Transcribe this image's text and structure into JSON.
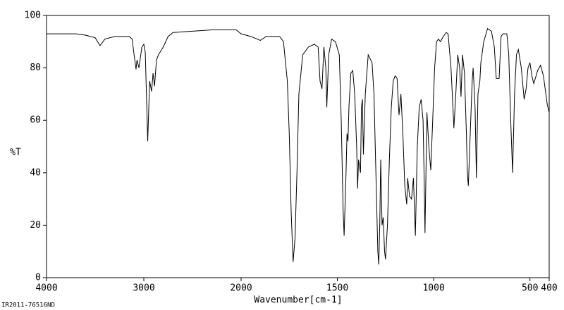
{
  "chart_data": {
    "type": "line",
    "x_label": "Wavenumber[cm-1]",
    "y_label": "%T",
    "footer": "IR2011-76516ND",
    "xlim": [
      4000,
      400
    ],
    "ylim": [
      0,
      100
    ],
    "xticks": [
      4000,
      3000,
      2000,
      1500,
      1000,
      500,
      400
    ],
    "yticks": [
      0,
      20,
      40,
      60,
      80,
      100
    ],
    "x_scale_break": 2000,
    "color": "#000000",
    "x": [
      4000,
      3900,
      3800,
      3700,
      3600,
      3500,
      3450,
      3400,
      3300,
      3150,
      3120,
      3100,
      3080,
      3070,
      3050,
      3020,
      3000,
      2985,
      2960,
      2940,
      2920,
      2905,
      2890,
      2870,
      2850,
      2800,
      2750,
      2700,
      2500,
      2300,
      2100,
      2050,
      2000,
      1950,
      1900,
      1870,
      1800,
      1780,
      1760,
      1750,
      1740,
      1730,
      1720,
      1710,
      1700,
      1680,
      1650,
      1620,
      1600,
      1590,
      1580,
      1570,
      1560,
      1555,
      1545,
      1530,
      1510,
      1490,
      1480,
      1470,
      1465,
      1455,
      1450,
      1445,
      1440,
      1430,
      1420,
      1410,
      1400,
      1395,
      1390,
      1380,
      1375,
      1370,
      1365,
      1355,
      1340,
      1320,
      1310,
      1300,
      1290,
      1285,
      1280,
      1275,
      1268,
      1262,
      1255,
      1250,
      1240,
      1230,
      1220,
      1210,
      1200,
      1190,
      1180,
      1170,
      1160,
      1150,
      1140,
      1135,
      1125,
      1115,
      1105,
      1095,
      1085,
      1075,
      1065,
      1055,
      1050,
      1045,
      1040,
      1035,
      1025,
      1015,
      1005,
      995,
      985,
      975,
      965,
      950,
      935,
      925,
      910,
      900,
      895,
      885,
      875,
      865,
      858,
      850,
      840,
      830,
      825,
      820,
      810,
      800,
      795,
      785,
      778,
      770,
      760,
      755,
      740,
      720,
      700,
      690,
      685,
      675,
      660,
      650,
      640,
      620,
      610,
      600,
      590,
      580,
      570,
      560,
      545,
      530,
      520,
      510,
      500,
      490,
      480,
      460,
      445,
      430,
      410,
      400
    ],
    "values": [
      93,
      93,
      93,
      93,
      92.5,
      91.5,
      88.5,
      91,
      92,
      92,
      91,
      85,
      79.5,
      83,
      80,
      88,
      89,
      86,
      52,
      75,
      71,
      78,
      73,
      83,
      85,
      88,
      92,
      93.5,
      94,
      94.5,
      94.5,
      94.5,
      93,
      92,
      90.5,
      92,
      92,
      90,
      75,
      55,
      25,
      6,
      15,
      40,
      70,
      85,
      88,
      89,
      88,
      75,
      72,
      88,
      80,
      65,
      85,
      91,
      90,
      85,
      60,
      25,
      16,
      40,
      55,
      52,
      65,
      78,
      79,
      70,
      50,
      34,
      45,
      40,
      65,
      68,
      47,
      70,
      85,
      82,
      70,
      40,
      10,
      5,
      20,
      45,
      20,
      23,
      10,
      7,
      20,
      45,
      65,
      75,
      77,
      76,
      62,
      70,
      55,
      35,
      28,
      38,
      31,
      30,
      38,
      16,
      50,
      65,
      68,
      60,
      40,
      17,
      40,
      63,
      50,
      41,
      60,
      80,
      90,
      91,
      90,
      92,
      93.5,
      93,
      80,
      65,
      57,
      70,
      85,
      80,
      69,
      85,
      78,
      55,
      40,
      35,
      55,
      75,
      80,
      65,
      38,
      70,
      75,
      82,
      90,
      95,
      94,
      90,
      88,
      76,
      76,
      92,
      93,
      93,
      85,
      60,
      40,
      70,
      85,
      87,
      80,
      68,
      72,
      80,
      82,
      77,
      74,
      79,
      81,
      77,
      66,
      63
    ]
  }
}
